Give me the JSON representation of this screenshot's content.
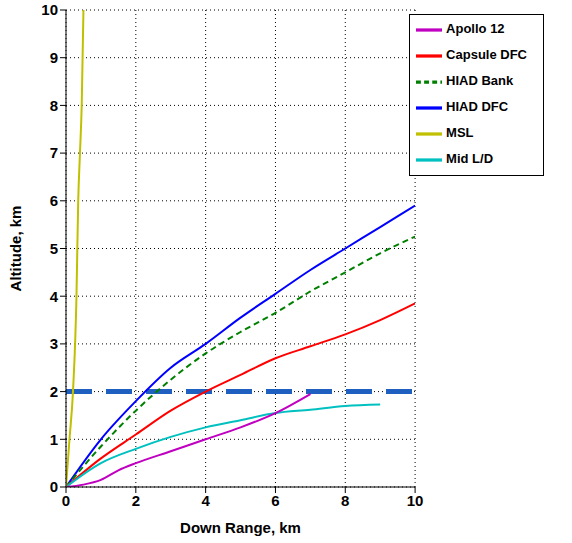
{
  "chart_data": {
    "type": "line",
    "x_label": "Down Range, km",
    "y_label": "Altitude, km",
    "xlim": [
      0,
      10
    ],
    "ylim": [
      0,
      10
    ],
    "xticks": [
      0,
      2,
      4,
      6,
      8,
      10
    ],
    "yticks": [
      0,
      1,
      2,
      3,
      4,
      5,
      6,
      7,
      8,
      9,
      10
    ],
    "grid": true,
    "legend": "upper right",
    "reference_y": 2,
    "series": [
      {
        "name": "HIAD DFC",
        "color": "#0000ff",
        "line_style": "solid",
        "x": [
          0,
          1,
          2,
          3,
          4,
          5,
          6,
          7,
          8,
          9,
          10
        ],
        "values": [
          0,
          1.0,
          1.8,
          2.5,
          3.0,
          3.55,
          4.05,
          4.55,
          5.0,
          5.45,
          5.9
        ]
      },
      {
        "name": "HIAD Bank",
        "color": "#008000",
        "line_style": "dashed",
        "x": [
          0,
          1,
          2,
          3,
          4,
          5,
          6,
          7,
          8,
          9,
          10
        ],
        "values": [
          0,
          0.85,
          1.6,
          2.25,
          2.8,
          3.25,
          3.65,
          4.1,
          4.5,
          4.9,
          5.25
        ]
      },
      {
        "name": "Capsule DFC",
        "color": "#ff0000",
        "line_style": "solid",
        "x": [
          0,
          1,
          2,
          3,
          4,
          5,
          6,
          7,
          8,
          9,
          10
        ],
        "values": [
          0,
          0.6,
          1.1,
          1.6,
          2.0,
          2.35,
          2.7,
          2.95,
          3.2,
          3.5,
          3.85
        ]
      },
      {
        "name": "Mid L/D",
        "color": "#00c0c0",
        "line_style": "solid",
        "x": [
          0,
          1,
          2,
          3,
          4,
          5,
          6,
          7,
          8,
          9
        ],
        "values": [
          0,
          0.5,
          0.8,
          1.05,
          1.25,
          1.4,
          1.55,
          1.62,
          1.7,
          1.73
        ]
      },
      {
        "name": "Apollo 12",
        "color": "#c000c0",
        "line_style": "solid",
        "x": [
          0,
          0.5,
          1,
          1.5,
          2,
          3,
          4,
          5,
          6,
          7
        ],
        "values": [
          0,
          0.05,
          0.15,
          0.35,
          0.5,
          0.75,
          1.0,
          1.25,
          1.55,
          1.95
        ]
      },
      {
        "name": "MSL",
        "color": "#c0c000",
        "line_style": "solid",
        "x": [
          0,
          0.1,
          0.2,
          0.3,
          0.35,
          0.4,
          0.45,
          0.5
        ],
        "values": [
          0,
          1,
          2,
          4,
          6,
          7,
          8,
          10
        ]
      }
    ]
  }
}
